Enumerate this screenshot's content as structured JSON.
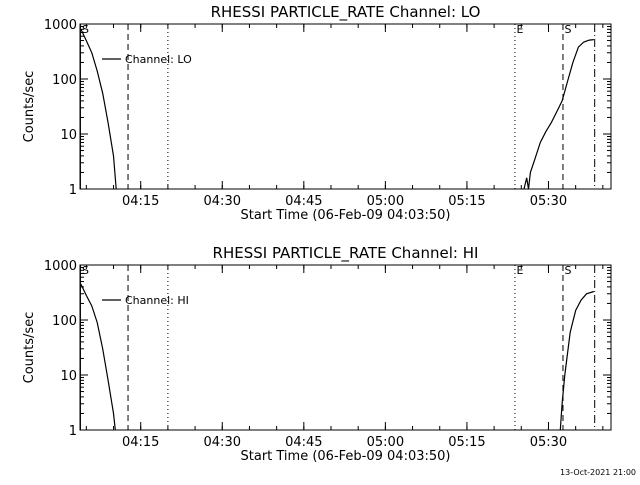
{
  "footer": {
    "timestamp": "13-Oct-2021 21:00"
  },
  "chart_data": [
    {
      "type": "line",
      "title": "RHESSI PARTICLE_RATE Channel: LO",
      "xlabel": "Start Time (06-Feb-09 04:03:50)",
      "ylabel": "Counts/sec",
      "yscale": "log",
      "xlim": [
        "04:03:50",
        "05:41:30"
      ],
      "ylim": [
        1,
        1000
      ],
      "x_ticks": [
        "04:15",
        "04:30",
        "04:45",
        "05:00",
        "05:15",
        "05:30"
      ],
      "y_ticks": [
        "1",
        "10",
        "100",
        "1000"
      ],
      "legend": {
        "placement": "top-left",
        "entries": [
          "Channel: LO"
        ]
      },
      "markers": [
        {
          "label": "S",
          "time": "04:03:55",
          "style": "solid"
        },
        {
          "label": "",
          "time": "04:12:40",
          "style": "dashed"
        },
        {
          "label": "",
          "time": "04:20:00",
          "style": "dotted"
        },
        {
          "label": "E",
          "time": "05:23:50",
          "style": "dotted"
        },
        {
          "label": "S",
          "time": "05:32:40",
          "style": "dashed"
        },
        {
          "label": "",
          "time": "05:38:30",
          "style": "dashdot"
        }
      ],
      "series": [
        {
          "name": "Channel: LO",
          "segments": [
            [
              [
                "04:04:00",
                800
              ],
              [
                "04:05:00",
                500
              ],
              [
                "04:06:00",
                300
              ],
              [
                "04:07:00",
                140
              ],
              [
                "04:08:00",
                55
              ],
              [
                "04:09:00",
                16
              ],
              [
                "04:10:00",
                4
              ],
              [
                "04:10:30",
                1
              ]
            ],
            [
              [
                "05:25:30",
                1
              ],
              [
                "05:26:00",
                1.6
              ],
              [
                "05:26:20",
                1
              ],
              [
                "05:26:40",
                2
              ],
              [
                "05:27:30",
                3.5
              ],
              [
                "05:28:30",
                7
              ],
              [
                "05:29:30",
                11
              ],
              [
                "05:30:30",
                16
              ],
              [
                "05:31:30",
                25
              ],
              [
                "05:32:30",
                40
              ],
              [
                "05:33:30",
                90
              ],
              [
                "05:34:30",
                200
              ],
              [
                "05:35:30",
                380
              ],
              [
                "05:36:30",
                470
              ],
              [
                "05:37:30",
                510
              ],
              [
                "05:38:20",
                520
              ]
            ]
          ]
        }
      ]
    },
    {
      "type": "line",
      "title": "RHESSI PARTICLE_RATE Channel: HI",
      "xlabel": "Start Time (06-Feb-09 04:03:50)",
      "ylabel": "Counts/sec",
      "yscale": "log",
      "xlim": [
        "04:03:50",
        "05:41:30"
      ],
      "ylim": [
        1,
        1000
      ],
      "x_ticks": [
        "04:15",
        "04:30",
        "04:45",
        "05:00",
        "05:15",
        "05:30"
      ],
      "y_ticks": [
        "1",
        "10",
        "100",
        "1000"
      ],
      "legend": {
        "placement": "top-left",
        "entries": [
          "Channel: HI"
        ]
      },
      "markers": [
        {
          "label": "S",
          "time": "04:03:55",
          "style": "solid"
        },
        {
          "label": "",
          "time": "04:12:40",
          "style": "dashed"
        },
        {
          "label": "",
          "time": "04:20:00",
          "style": "dotted"
        },
        {
          "label": "E",
          "time": "05:23:50",
          "style": "dotted"
        },
        {
          "label": "S",
          "time": "05:32:40",
          "style": "dashed"
        },
        {
          "label": "",
          "time": "05:38:30",
          "style": "dashdot"
        }
      ],
      "series": [
        {
          "name": "Channel: HI",
          "segments": [
            [
              [
                "04:04:00",
                450
              ],
              [
                "04:05:00",
                280
              ],
              [
                "04:06:00",
                180
              ],
              [
                "04:07:00",
                90
              ],
              [
                "04:08:00",
                30
              ],
              [
                "04:09:00",
                8
              ],
              [
                "04:10:00",
                2
              ],
              [
                "04:10:20",
                1
              ]
            ],
            [
              [
                "05:32:10",
                1
              ],
              [
                "05:32:30",
                3
              ],
              [
                "05:33:00",
                10
              ],
              [
                "05:34:00",
                60
              ],
              [
                "05:35:00",
                150
              ],
              [
                "05:36:00",
                230
              ],
              [
                "05:37:00",
                300
              ],
              [
                "05:38:20",
                330
              ]
            ]
          ]
        }
      ]
    }
  ]
}
